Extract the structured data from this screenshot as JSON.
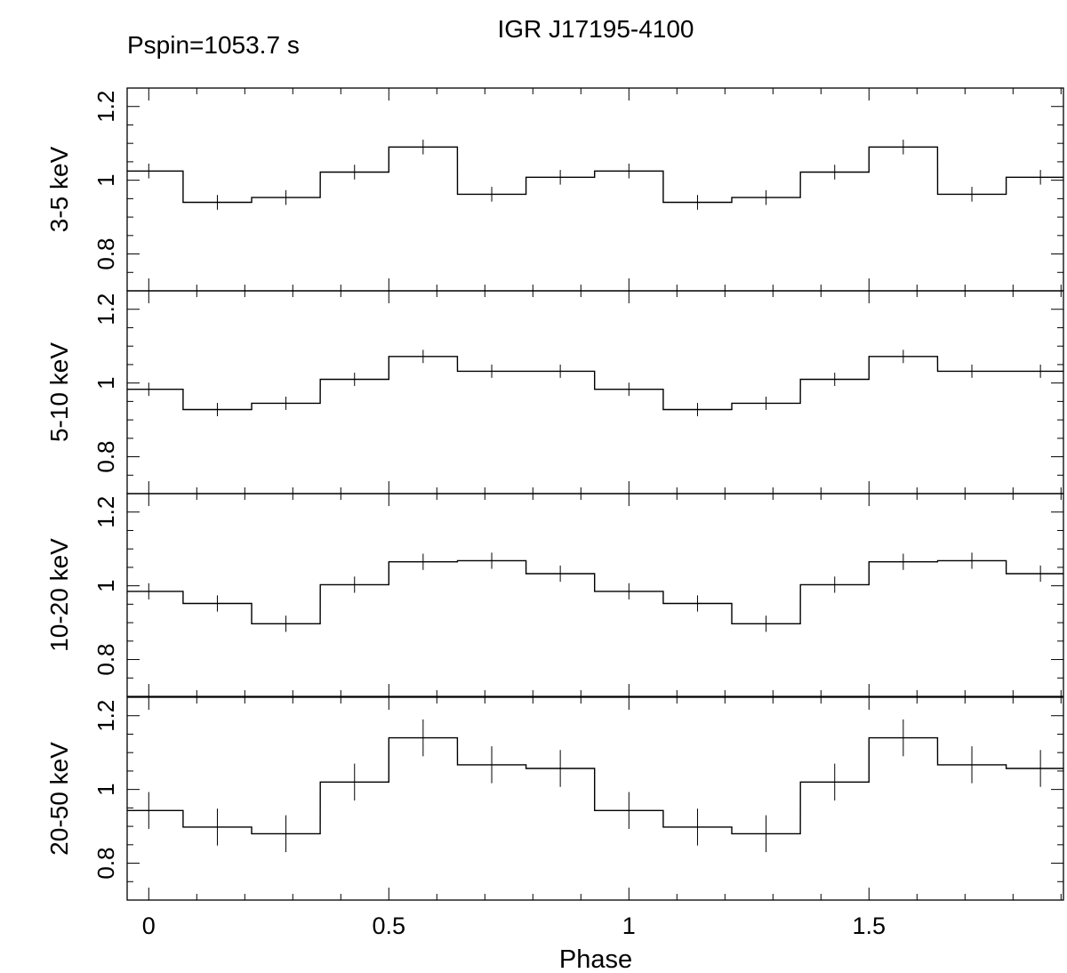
{
  "chart_data": {
    "type": "line",
    "step": true,
    "title": "IGR J17195-4100",
    "annotation": "Pspin=1053.7 s",
    "xlabel": "Phase",
    "xlim": [
      -0.045,
      1.905
    ],
    "x_ticks": [
      0,
      0.5,
      1,
      1.5
    ],
    "x_tick_labels": [
      "0",
      "0.5",
      "1",
      "1.5"
    ],
    "ylim": [
      0.7,
      1.25
    ],
    "y_ticks": [
      0.8,
      1.0,
      1.2
    ],
    "y_tick_labels": [
      "0.8",
      "1",
      "1.2"
    ],
    "bin_width": 0.142857,
    "x": [
      0,
      0.1429,
      0.2857,
      0.4286,
      0.5714,
      0.7143,
      0.8571,
      1.0,
      1.1429,
      1.2857,
      1.4286,
      1.5714,
      1.7143,
      1.8571
    ],
    "series": [
      {
        "name": "3-5 keV",
        "values": [
          1.025,
          0.94,
          0.953,
          1.022,
          1.09,
          0.962,
          1.008,
          1.025,
          0.94,
          0.953,
          1.022,
          1.09,
          0.962,
          1.008
        ],
        "errors": [
          0.02,
          0.02,
          0.02,
          0.02,
          0.02,
          0.02,
          0.02,
          0.02,
          0.02,
          0.02,
          0.02,
          0.02,
          0.02,
          0.02
        ]
      },
      {
        "name": "5-10 keV",
        "values": [
          0.983,
          0.928,
          0.945,
          1.01,
          1.072,
          1.032,
          1.032,
          0.983,
          0.928,
          0.945,
          1.01,
          1.072,
          1.032,
          1.032
        ],
        "errors": [
          0.018,
          0.018,
          0.018,
          0.018,
          0.018,
          0.018,
          0.018,
          0.018,
          0.018,
          0.018,
          0.018,
          0.018,
          0.018,
          0.018
        ]
      },
      {
        "name": "10-20 keV",
        "values": [
          0.985,
          0.952,
          0.897,
          1.003,
          1.065,
          1.068,
          1.033,
          0.985,
          0.952,
          0.897,
          1.003,
          1.065,
          1.068,
          1.033
        ],
        "errors": [
          0.022,
          0.022,
          0.022,
          0.022,
          0.022,
          0.022,
          0.022,
          0.022,
          0.022,
          0.022,
          0.022,
          0.022,
          0.022,
          0.022
        ]
      },
      {
        "name": "20-50 keV",
        "values": [
          0.943,
          0.898,
          0.88,
          1.02,
          1.14,
          1.067,
          1.057,
          0.943,
          0.898,
          0.88,
          1.02,
          1.14,
          1.067,
          1.057
        ],
        "errors": [
          0.05,
          0.05,
          0.05,
          0.05,
          0.05,
          0.05,
          0.05,
          0.05,
          0.05,
          0.05,
          0.05,
          0.05,
          0.05,
          0.05
        ]
      }
    ]
  }
}
